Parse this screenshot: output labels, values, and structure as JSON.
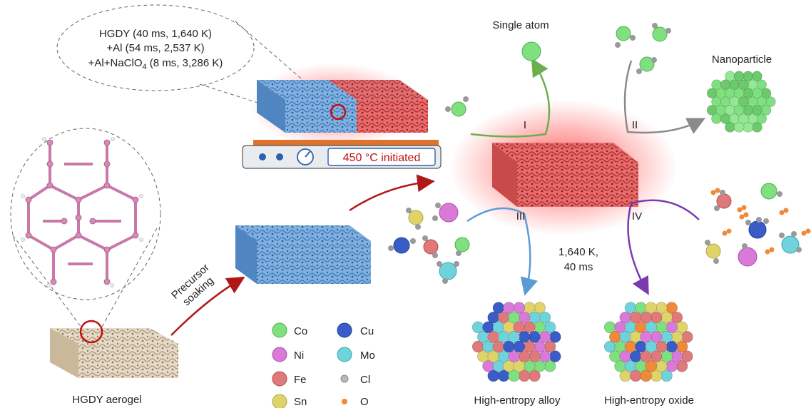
{
  "conditions": {
    "line1": "HGDY (40 ms, 1,640 K)",
    "line2": "+Al (54 ms, 2,537 K)",
    "line3_main": "+Al+NaClO",
    "line3_sub": "4",
    "line3_tail": " (8 ms, 3,286 K)"
  },
  "heater": {
    "status": "450 °C initiated"
  },
  "labels": {
    "aerogel": "HGDY aerogel",
    "soaking_line1": "Precursor",
    "soaking_line2": "soaking",
    "single_atom": "Single atom",
    "nanoparticle": "Nanoparticle",
    "hea": "High-entropy alloy",
    "heo": "High-entropy oxide",
    "temp_line1": "1,640 K,",
    "temp_line2": "40 ms"
  },
  "routes": [
    "I",
    "II",
    "III",
    "IV"
  ],
  "legend": [
    {
      "symbol": "Co",
      "color": "#7ee07e"
    },
    {
      "symbol": "Cu",
      "color": "#3a5cc8"
    },
    {
      "symbol": "Ni",
      "color": "#d97ad9"
    },
    {
      "symbol": "Mo",
      "color": "#6fd3dc"
    },
    {
      "symbol": "Fe",
      "color": "#e07a7a"
    },
    {
      "symbol": "Cl",
      "color": "#b8b8b8"
    },
    {
      "symbol": "Sn",
      "color": "#dfd46a"
    },
    {
      "symbol": "O",
      "color": "#f08a3a"
    }
  ],
  "arrow_colors": {
    "route_I": "#6ab04c",
    "route_II": "#8a8a8a",
    "route_III": "#5b9bd5",
    "route_IV": "#7a3bb0",
    "main": "#b01818"
  }
}
